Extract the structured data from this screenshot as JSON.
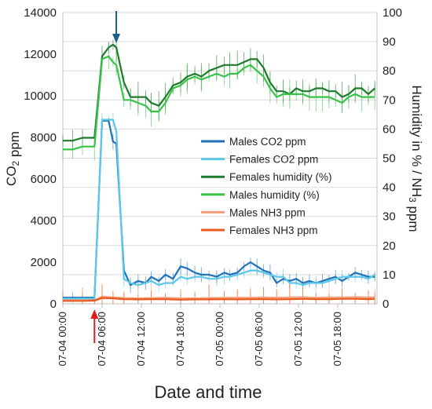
{
  "chart_data": {
    "type": "line",
    "xlabel": "Date and time",
    "ylabel_left": "CO2 ppm",
    "ylabel_right": "Humidity in % / NH3 ppm",
    "x_range": [
      "07-04 00:00",
      "07-06 00:00"
    ],
    "x_ticks": [
      "07-04 00:00",
      "07-04 06:00",
      "07-04 12:00",
      "07-04 18:00",
      "07-05 00:00",
      "07-05 06:00",
      "07-05 12:00",
      "07-05 18:00"
    ],
    "ylim_left": [
      0,
      14000
    ],
    "yticks_left": [
      0,
      2000,
      4000,
      6000,
      8000,
      10000,
      12000,
      14000
    ],
    "ylim_right": [
      0,
      100
    ],
    "yticks_right": [
      0,
      10,
      20,
      30,
      40,
      50,
      60,
      70,
      80,
      90,
      100
    ],
    "grid": "horizontal",
    "legend_position": "center-right",
    "error_bars": true,
    "annotations": [
      {
        "type": "arrow-up",
        "color": "#e01b1b",
        "x": "07-04 04:50"
      },
      {
        "type": "arrow-down",
        "color": "#1a5e8a",
        "x": "07-04 08:10"
      }
    ],
    "series": [
      {
        "name": "Males CO2 ppm",
        "axis": "left",
        "color": "#1f72b8",
        "x": [
          "07-04 00:00",
          "07-04 01:30",
          "07-04 03:00",
          "07-04 04:50",
          "07-04 06:00",
          "07-04 07:00",
          "07-04 07:40",
          "07-04 08:10",
          "07-04 09:20",
          "07-04 10:20",
          "07-04 11:30",
          "07-04 12:40",
          "07-04 13:30",
          "07-04 14:40",
          "07-04 15:40",
          "07-04 16:50",
          "07-04 18:00",
          "07-04 19:00",
          "07-04 20:10",
          "07-04 21:10",
          "07-04 22:20",
          "07-04 23:30",
          "07-05 00:40",
          "07-05 01:30",
          "07-05 02:40",
          "07-05 03:40",
          "07-05 04:40",
          "07-05 05:40",
          "07-05 06:40",
          "07-05 07:40",
          "07-05 08:40",
          "07-05 09:40",
          "07-05 10:40",
          "07-05 11:40",
          "07-05 12:40",
          "07-05 13:40",
          "07-05 14:40",
          "07-05 15:40",
          "07-05 16:40",
          "07-05 17:40",
          "07-05 18:40",
          "07-05 19:40",
          "07-05 20:40",
          "07-05 21:40",
          "07-05 22:40",
          "07-05 23:40"
        ],
        "values": [
          300,
          300,
          300,
          300,
          8800,
          8800,
          7800,
          7700,
          1600,
          900,
          1100,
          1000,
          1300,
          1100,
          1400,
          1200,
          1800,
          1700,
          1500,
          1400,
          1400,
          1300,
          1500,
          1400,
          1500,
          1800,
          2000,
          1800,
          1600,
          1500,
          1000,
          1200,
          1100,
          1200,
          1000,
          1100,
          1000,
          1100,
          1200,
          1300,
          1100,
          1300,
          1500,
          1400,
          1300,
          1300
        ]
      },
      {
        "name": "Females CO2 ppm",
        "axis": "left",
        "color": "#5bc8ea",
        "x": [
          "07-04 00:00",
          "07-04 01:30",
          "07-04 03:00",
          "07-04 04:50",
          "07-04 06:00",
          "07-04 07:00",
          "07-04 07:40",
          "07-04 08:10",
          "07-04 09:20",
          "07-04 10:20",
          "07-04 11:30",
          "07-04 12:40",
          "07-04 13:30",
          "07-04 14:40",
          "07-04 15:40",
          "07-04 16:50",
          "07-04 18:00",
          "07-04 19:00",
          "07-04 20:10",
          "07-04 21:10",
          "07-04 22:20",
          "07-04 23:30",
          "07-05 00:40",
          "07-05 01:30",
          "07-05 02:40",
          "07-05 03:40",
          "07-05 04:40",
          "07-05 05:40",
          "07-05 06:40",
          "07-05 07:40",
          "07-05 08:40",
          "07-05 09:40",
          "07-05 10:40",
          "07-05 11:40",
          "07-05 12:40",
          "07-05 13:40",
          "07-05 14:40",
          "07-05 15:40",
          "07-05 16:40",
          "07-05 17:40",
          "07-05 18:40",
          "07-05 19:40",
          "07-05 20:40",
          "07-05 21:40",
          "07-05 22:40",
          "07-05 23:40"
        ],
        "values": [
          250,
          250,
          250,
          250,
          8850,
          8850,
          8850,
          8300,
          1200,
          1000,
          900,
          1000,
          1100,
          900,
          1000,
          1000,
          1300,
          1200,
          1300,
          1300,
          1200,
          1200,
          1300,
          1300,
          1400,
          1500,
          1600,
          1600,
          1500,
          1400,
          1300,
          1300,
          1000,
          1000,
          900,
          1000,
          1000,
          1000,
          1100,
          1200,
          1300,
          1300,
          1300,
          1300,
          1200,
          1400
        ]
      },
      {
        "name": "Females humidity (%)",
        "axis": "right",
        "color": "#1e7a2c",
        "x": [
          "07-04 00:00",
          "07-04 01:30",
          "07-04 03:00",
          "07-04 04:50",
          "07-04 06:00",
          "07-04 07:00",
          "07-04 07:40",
          "07-04 08:10",
          "07-04 09:20",
          "07-04 10:20",
          "07-04 11:30",
          "07-04 12:40",
          "07-04 13:30",
          "07-04 14:40",
          "07-04 15:40",
          "07-04 16:50",
          "07-04 18:00",
          "07-04 19:00",
          "07-04 20:10",
          "07-04 21:10",
          "07-04 22:20",
          "07-04 23:30",
          "07-05 00:40",
          "07-05 01:30",
          "07-05 02:40",
          "07-05 03:40",
          "07-05 04:40",
          "07-05 05:40",
          "07-05 06:40",
          "07-05 07:40",
          "07-05 08:40",
          "07-05 09:40",
          "07-05 10:40",
          "07-05 11:40",
          "07-05 12:40",
          "07-05 13:40",
          "07-05 14:40",
          "07-05 15:40",
          "07-05 16:40",
          "07-05 17:40",
          "07-05 18:40",
          "07-05 19:40",
          "07-05 20:40",
          "07-05 21:40",
          "07-05 22:40",
          "07-05 23:40"
        ],
        "values": [
          56,
          56,
          57,
          57,
          85,
          88,
          89,
          88,
          76,
          71,
          71,
          71,
          69,
          68,
          71,
          75,
          76,
          78,
          79,
          78,
          80,
          81,
          82,
          82,
          82,
          83,
          84,
          84,
          81,
          76,
          73,
          73,
          72,
          74,
          73,
          73,
          74,
          74,
          73,
          73,
          71,
          72,
          74,
          74,
          72,
          74
        ]
      },
      {
        "name": "Males humidity (%)",
        "axis": "right",
        "color": "#39c24a",
        "x": [
          "07-04 00:00",
          "07-04 01:30",
          "07-04 03:00",
          "07-04 04:50",
          "07-04 06:00",
          "07-04 07:00",
          "07-04 07:40",
          "07-04 08:10",
          "07-04 09:20",
          "07-04 10:20",
          "07-04 11:30",
          "07-04 12:40",
          "07-04 13:30",
          "07-04 14:40",
          "07-04 15:40",
          "07-04 16:50",
          "07-04 18:00",
          "07-04 19:00",
          "07-04 20:10",
          "07-04 21:10",
          "07-04 22:20",
          "07-04 23:30",
          "07-05 00:40",
          "07-05 01:30",
          "07-05 02:40",
          "07-05 03:40",
          "07-05 04:40",
          "07-05 05:40",
          "07-05 06:40",
          "07-05 07:40",
          "07-05 08:40",
          "07-05 09:40",
          "07-05 10:40",
          "07-05 11:40",
          "07-05 12:40",
          "07-05 13:40",
          "07-05 14:40",
          "07-05 15:40",
          "07-05 16:40",
          "07-05 17:40",
          "07-05 18:40",
          "07-05 19:40",
          "07-05 20:40",
          "07-05 21:40",
          "07-05 22:40",
          "07-05 23:40"
        ],
        "values": [
          53,
          53,
          54,
          54,
          84,
          85,
          83,
          82,
          70,
          70,
          69,
          68,
          66,
          66,
          69,
          74,
          75,
          77,
          78,
          77,
          78,
          79,
          78,
          79,
          79,
          81,
          82,
          80,
          78,
          74,
          71,
          72,
          72,
          72,
          72,
          71,
          71,
          71,
          71,
          70,
          69,
          71,
          72,
          71,
          71,
          71
        ]
      },
      {
        "name": "Males NH3 ppm",
        "axis": "right",
        "color": "#f5a07a",
        "x": [
          "07-04 00:00",
          "07-04 03:00",
          "07-04 04:50",
          "07-04 06:00",
          "07-04 07:40",
          "07-04 09:20",
          "07-04 11:30",
          "07-04 13:30",
          "07-04 15:40",
          "07-04 18:00",
          "07-04 20:10",
          "07-04 22:20",
          "07-05 00:40",
          "07-05 02:40",
          "07-05 04:40",
          "07-05 06:40",
          "07-05 08:40",
          "07-05 10:40",
          "07-05 12:40",
          "07-05 14:40",
          "07-05 16:40",
          "07-05 18:40",
          "07-05 20:40",
          "07-05 22:40",
          "07-05 23:40"
        ],
        "values": [
          1.2,
          1.2,
          1.2,
          2.5,
          2.2,
          2,
          1.9,
          2,
          2.1,
          1.9,
          1.9,
          2,
          2.1,
          2.1,
          2.1,
          2.2,
          2.1,
          2.2,
          2.3,
          2.1,
          2.2,
          2.2,
          2.3,
          2.2,
          2.3
        ]
      },
      {
        "name": "Females NH3 ppm",
        "axis": "right",
        "color": "#ea5a1e",
        "x": [
          "07-04 00:00",
          "07-04 03:00",
          "07-04 04:50",
          "07-04 06:00",
          "07-04 07:40",
          "07-04 09:20",
          "07-04 11:30",
          "07-04 13:30",
          "07-04 15:40",
          "07-04 18:00",
          "07-04 20:10",
          "07-04 22:20",
          "07-05 00:40",
          "07-05 02:40",
          "07-05 04:40",
          "07-05 06:40",
          "07-05 08:40",
          "07-05 10:40",
          "07-05 12:40",
          "07-05 14:40",
          "07-05 16:40",
          "07-05 18:40",
          "07-05 20:40",
          "07-05 22:40",
          "07-05 23:40"
        ],
        "values": [
          1,
          1,
          1.1,
          2,
          1.9,
          1.6,
          1.5,
          1.6,
          1.6,
          1.4,
          1.5,
          1.5,
          1.6,
          1.5,
          1.6,
          1.6,
          1.5,
          1.6,
          1.7,
          1.6,
          1.6,
          1.7,
          1.7,
          1.6,
          1.7
        ]
      }
    ]
  }
}
